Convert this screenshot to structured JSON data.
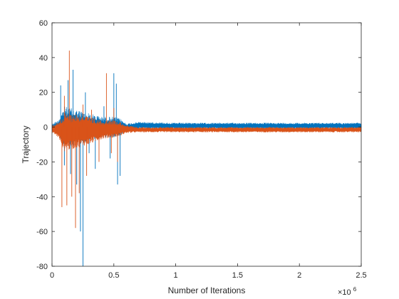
{
  "chart_data": {
    "type": "line",
    "title": "",
    "xlabel": "Number of Iterations",
    "ylabel": "Trajectory",
    "x_multiplier_label": "×10",
    "x_multiplier_exponent": "6",
    "xlim": [
      0,
      2.5
    ],
    "ylim": [
      -80,
      60
    ],
    "x_ticks": [
      0,
      0.5,
      1,
      1.5,
      2,
      2.5
    ],
    "x_tick_labels": [
      "0",
      "0.5",
      "1",
      "1.5",
      "2",
      "2.5"
    ],
    "y_ticks": [
      -80,
      -60,
      -40,
      -20,
      0,
      20,
      40,
      60
    ],
    "y_tick_labels": [
      "-80",
      "-60",
      "-40",
      "-20",
      "0",
      "20",
      "40",
      "60"
    ],
    "grid": false,
    "box": true,
    "colors": {
      "axis": "#262626",
      "series1": "#0072BD",
      "series2": "#D95319"
    },
    "series": [
      {
        "color": "#0072BD",
        "band": [
          {
            "x": 0.0,
            "min": -2,
            "max": 2
          },
          {
            "x": 0.05,
            "min": -4,
            "max": 4
          },
          {
            "x": 0.1,
            "min": -12,
            "max": 12
          },
          {
            "x": 0.2,
            "min": -10,
            "max": 10
          },
          {
            "x": 0.3,
            "min": -8,
            "max": 8
          },
          {
            "x": 0.4,
            "min": -6,
            "max": 6
          },
          {
            "x": 0.5,
            "min": -6,
            "max": 6
          },
          {
            "x": 0.55,
            "min": -5,
            "max": 5
          },
          {
            "x": 0.6,
            "min": -2,
            "max": 2
          },
          {
            "x": 0.7,
            "min": -1,
            "max": 3
          },
          {
            "x": 1.0,
            "min": -1,
            "max": 2.5
          },
          {
            "x": 2.5,
            "min": -1,
            "max": 2.5
          }
        ],
        "spikes": [
          {
            "x": 0.07,
            "y": 24
          },
          {
            "x": 0.1,
            "y": -22
          },
          {
            "x": 0.13,
            "y": 27
          },
          {
            "x": 0.15,
            "y": -27
          },
          {
            "x": 0.17,
            "y": 33
          },
          {
            "x": 0.2,
            "y": -33
          },
          {
            "x": 0.23,
            "y": -60
          },
          {
            "x": 0.25,
            "y": -80
          },
          {
            "x": 0.27,
            "y": 20
          },
          {
            "x": 0.3,
            "y": -15
          },
          {
            "x": 0.35,
            "y": -24
          },
          {
            "x": 0.42,
            "y": 12
          },
          {
            "x": 0.47,
            "y": -18
          },
          {
            "x": 0.5,
            "y": 31
          },
          {
            "x": 0.52,
            "y": 25
          },
          {
            "x": 0.53,
            "y": -33
          },
          {
            "x": 0.55,
            "y": -28
          }
        ]
      },
      {
        "color": "#D95319",
        "band": [
          {
            "x": 0.0,
            "min": -3,
            "max": 1
          },
          {
            "x": 0.05,
            "min": -6,
            "max": 3
          },
          {
            "x": 0.1,
            "min": -14,
            "max": 8
          },
          {
            "x": 0.2,
            "min": -12,
            "max": 8
          },
          {
            "x": 0.3,
            "min": -10,
            "max": 6
          },
          {
            "x": 0.4,
            "min": -7,
            "max": 4
          },
          {
            "x": 0.5,
            "min": -6,
            "max": 4
          },
          {
            "x": 0.55,
            "min": -5,
            "max": 3
          },
          {
            "x": 0.6,
            "min": -3.5,
            "max": 1
          },
          {
            "x": 0.7,
            "min": -3,
            "max": 0
          },
          {
            "x": 1.0,
            "min": -3,
            "max": 0
          },
          {
            "x": 2.5,
            "min": -3,
            "max": 0
          }
        ],
        "spikes": [
          {
            "x": 0.08,
            "y": -46
          },
          {
            "x": 0.1,
            "y": 18
          },
          {
            "x": 0.12,
            "y": -45
          },
          {
            "x": 0.14,
            "y": 44
          },
          {
            "x": 0.16,
            "y": -40
          },
          {
            "x": 0.19,
            "y": -58
          },
          {
            "x": 0.22,
            "y": -38
          },
          {
            "x": 0.25,
            "y": 13
          },
          {
            "x": 0.28,
            "y": -28
          },
          {
            "x": 0.32,
            "y": 10
          },
          {
            "x": 0.38,
            "y": -20
          },
          {
            "x": 0.44,
            "y": 31
          },
          {
            "x": 0.48,
            "y": -15
          },
          {
            "x": 0.5,
            "y": 11
          },
          {
            "x": 0.53,
            "y": -20
          }
        ]
      }
    ]
  }
}
